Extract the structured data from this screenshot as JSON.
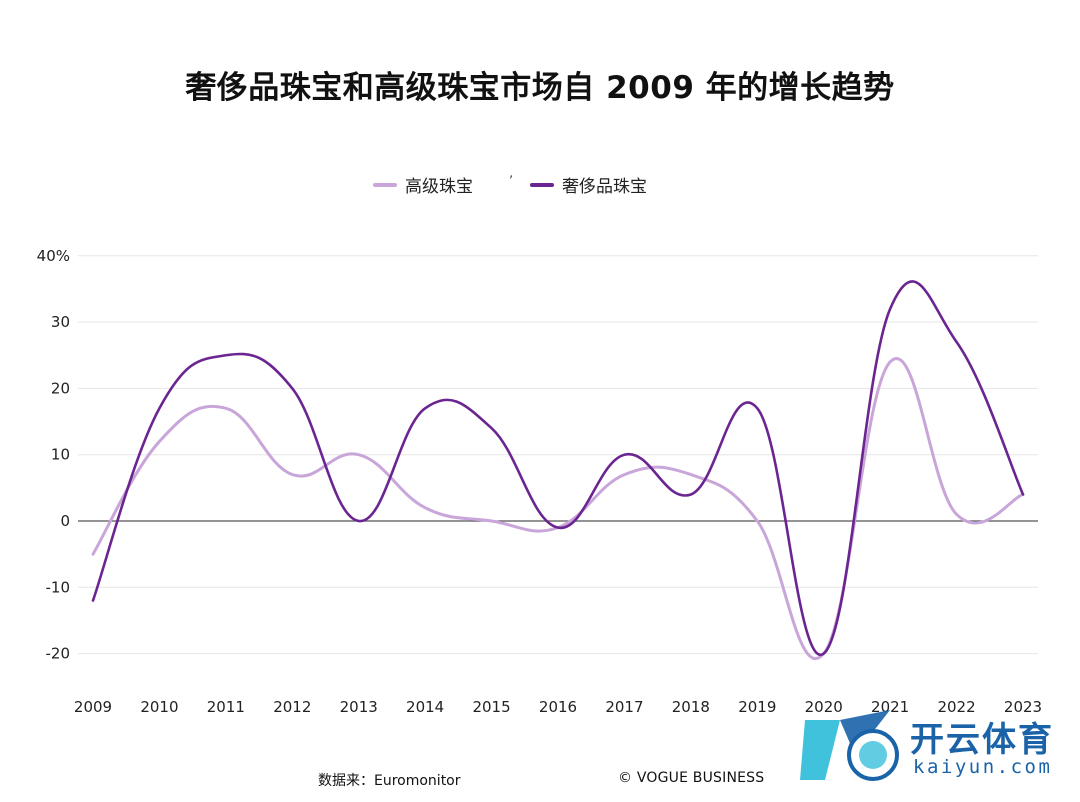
{
  "chart_data": {
    "type": "line",
    "title": "奢侈品珠宝和高级珠宝市场自 2009 年的增长趋势",
    "categories": [
      "2009",
      "2010",
      "2011",
      "2012",
      "2013",
      "2014",
      "2015",
      "2016",
      "2017",
      "2018",
      "2019",
      "2020",
      "2021",
      "2022",
      "2023"
    ],
    "series": [
      {
        "name": "高级珠宝",
        "color": "#c9a6d9",
        "values": [
          -5,
          12,
          17,
          7,
          10,
          2,
          0,
          -1,
          7,
          7,
          0,
          -20,
          24,
          1,
          4
        ]
      },
      {
        "name": "奢侈品珠宝",
        "color": "#6b2590",
        "values": [
          -12,
          17,
          25,
          20,
          0,
          17,
          14,
          -1,
          10,
          4,
          17,
          -20,
          32,
          27,
          4
        ]
      }
    ],
    "ylim": [
      -25,
      40
    ],
    "yticks": [
      "-20",
      "-10",
      "0",
      "10",
      "20",
      "30",
      "40%"
    ],
    "ytick_values": [
      -20,
      -10,
      0,
      10,
      20,
      30,
      40
    ],
    "grid": true,
    "legend_position": "top"
  },
  "legend": {
    "items": [
      {
        "label": "高级珠宝",
        "color": "#c9a6d9"
      },
      {
        "label": "奢侈品珠宝",
        "color": "#6b2590"
      }
    ],
    "separator": "ʼ"
  },
  "footer": {
    "source": "数据来：Euromonitor",
    "credit": "© VOGUE BUSINESS"
  },
  "watermark": {
    "cn": "开云体育",
    "en": "kaiyun.com",
    "color": "#1a63a8"
  }
}
